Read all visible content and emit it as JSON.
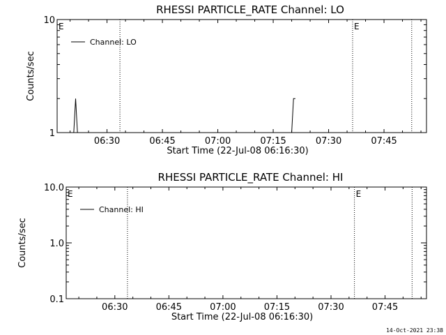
{
  "footer_timestamp": "14-Oct-2021 23:38",
  "chart_data": [
    {
      "type": "line",
      "title": "RHESSI PARTICLE_RATE Channel: LO",
      "xlabel": "Start Time (22-Jul-08 06:16:30)",
      "ylabel": "Counts/sec",
      "yscale": "log",
      "ylim": [
        1,
        10
      ],
      "ytick_values": [
        1,
        10
      ],
      "ytick_labels": [
        "1",
        "10"
      ],
      "xlim": [
        "06:16:30",
        "07:56:30"
      ],
      "xtick_labels": [
        "06:30",
        "06:45",
        "07:00",
        "07:15",
        "07:30",
        "07:45"
      ],
      "xtick_values": [
        "06:30",
        "06:45",
        "07:00",
        "07:15",
        "07:30",
        "07:45"
      ],
      "legend_position": "top-left",
      "series": [
        {
          "name": "Channel: LO",
          "x": [
            "06:21:00",
            "06:21:30",
            "06:22:00",
            "07:20:00",
            "07:20:30",
            "07:21:00"
          ],
          "y": [
            1,
            2,
            1,
            1,
            2,
            2
          ]
        }
      ],
      "markers": [
        {
          "label": "E",
          "time": "06:16:30"
        },
        {
          "label": "E",
          "time": "07:36:30"
        }
      ],
      "vlines": [
        "06:33:30",
        "07:36:30",
        "07:52:30"
      ]
    },
    {
      "type": "line",
      "title": "RHESSI PARTICLE_RATE Channel: HI",
      "xlabel": "Start Time (22-Jul-08 06:16:30)",
      "ylabel": "Counts/sec",
      "yscale": "log",
      "ylim": [
        0.1,
        10
      ],
      "ytick_values": [
        0.1,
        1,
        10
      ],
      "ytick_labels": [
        "0.1",
        "1.0",
        "10.0"
      ],
      "xlim": [
        "06:16:30",
        "07:56:30"
      ],
      "xtick_labels": [
        "06:30",
        "06:45",
        "07:00",
        "07:15",
        "07:30",
        "07:45"
      ],
      "xtick_values": [
        "06:30",
        "06:45",
        "07:00",
        "07:15",
        "07:30",
        "07:45"
      ],
      "legend_position": "top-left",
      "series": [
        {
          "name": "Channel: HI",
          "x": [],
          "y": []
        }
      ],
      "markers": [
        {
          "label": "E",
          "time": "06:16:30"
        },
        {
          "label": "E",
          "time": "07:36:30"
        }
      ],
      "vlines": [
        "06:33:30",
        "07:36:30",
        "07:52:30"
      ]
    }
  ]
}
